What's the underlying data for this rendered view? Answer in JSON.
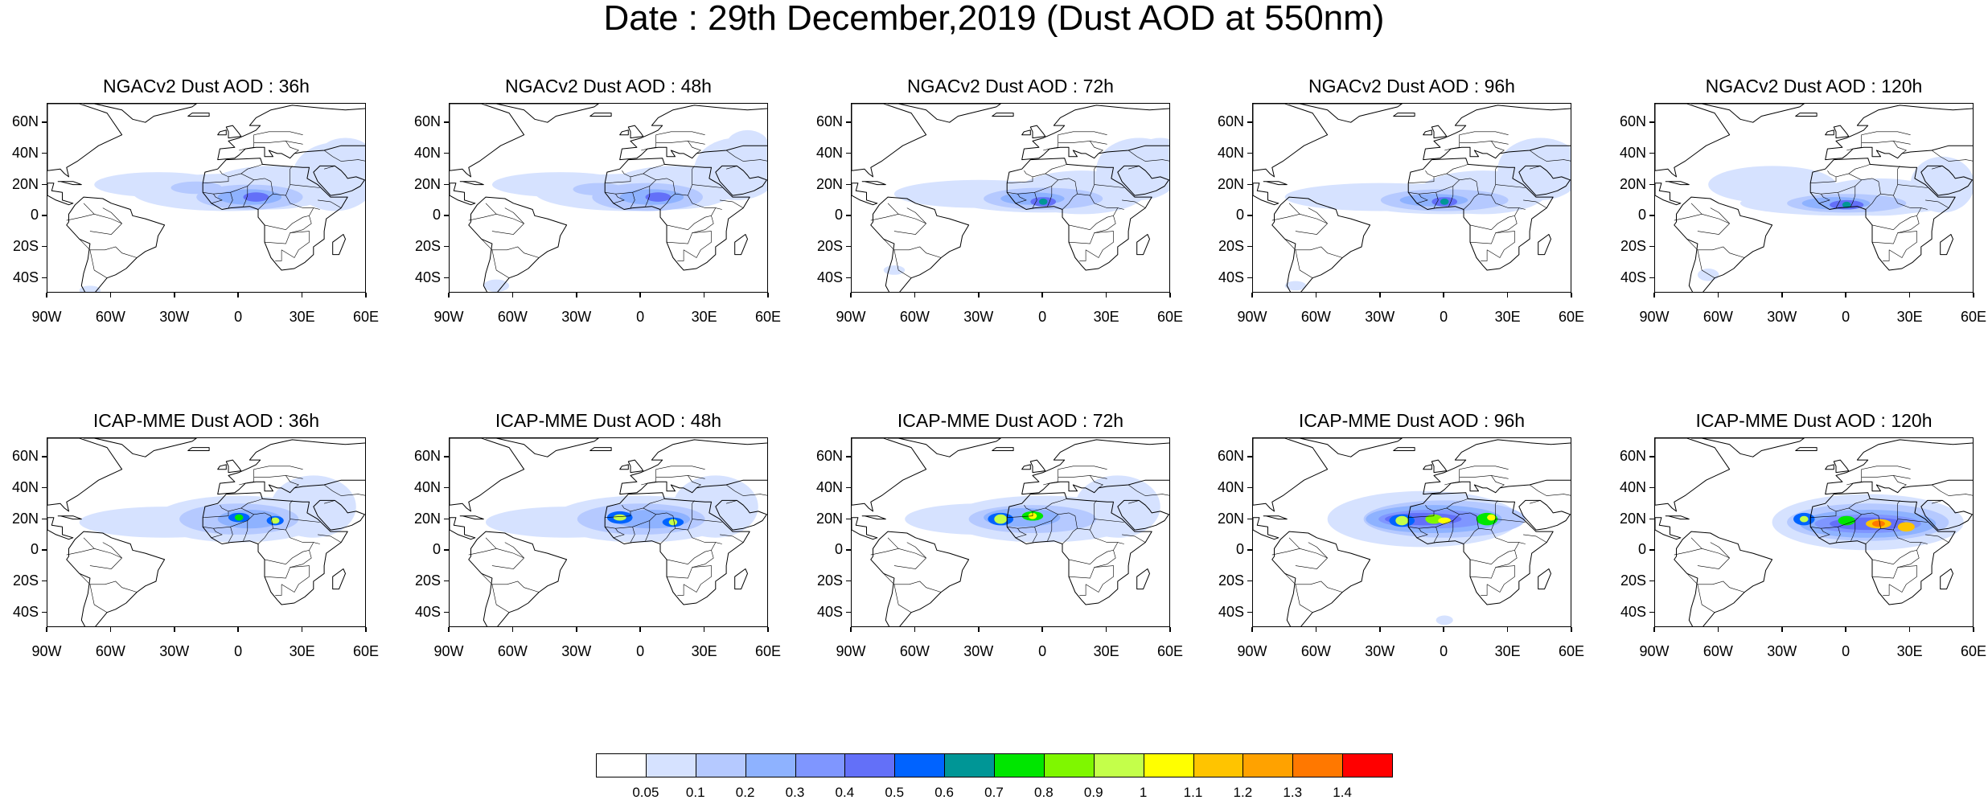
{
  "title": "Date : 29th December,2019 (Dust AOD at 550nm)",
  "lat_labels": [
    "60N",
    "40N",
    "20N",
    "0",
    "20S",
    "40S"
  ],
  "lon_labels": [
    "90W",
    "60W",
    "30W",
    "0",
    "30E",
    "60E"
  ],
  "panels": [
    {
      "title": "NGACv2 Dust AOD : 36h",
      "model": "NGACv2",
      "hour": 36
    },
    {
      "title": "NGACv2 Dust AOD : 48h",
      "model": "NGACv2",
      "hour": 48
    },
    {
      "title": "NGACv2 Dust AOD : 72h",
      "model": "NGACv2",
      "hour": 72
    },
    {
      "title": "NGACv2 Dust AOD : 96h",
      "model": "NGACv2",
      "hour": 96
    },
    {
      "title": "NGACv2 Dust AOD : 120h",
      "model": "NGACv2",
      "hour": 120
    },
    {
      "title": "ICAP-MME Dust AOD : 36h",
      "model": "ICAP-MME",
      "hour": 36
    },
    {
      "title": "ICAP-MME Dust AOD : 48h",
      "model": "ICAP-MME",
      "hour": 48
    },
    {
      "title": "ICAP-MME Dust AOD : 72h",
      "model": "ICAP-MME",
      "hour": 72
    },
    {
      "title": "ICAP-MME Dust AOD : 96h",
      "model": "ICAP-MME",
      "hour": 96
    },
    {
      "title": "ICAP-MME Dust AOD : 120h",
      "model": "ICAP-MME",
      "hour": 120
    }
  ],
  "colorbar": {
    "labels": [
      "0.05",
      "0.1",
      "0.2",
      "0.3",
      "0.4",
      "0.5",
      "0.6",
      "0.7",
      "0.8",
      "0.9",
      "1",
      "1.1",
      "1.2",
      "1.3",
      "1.4"
    ],
    "colors": [
      "#ffffff",
      "#d6e2ff",
      "#b5c9ff",
      "#8eb2ff",
      "#7f96ff",
      "#6370f8",
      "#0063ff",
      "#009696",
      "#00e600",
      "#7ff700",
      "#c4ff4a",
      "#ffff00",
      "#ffc400",
      "#ffa200",
      "#ff7800",
      "#ff0000"
    ]
  }
}
